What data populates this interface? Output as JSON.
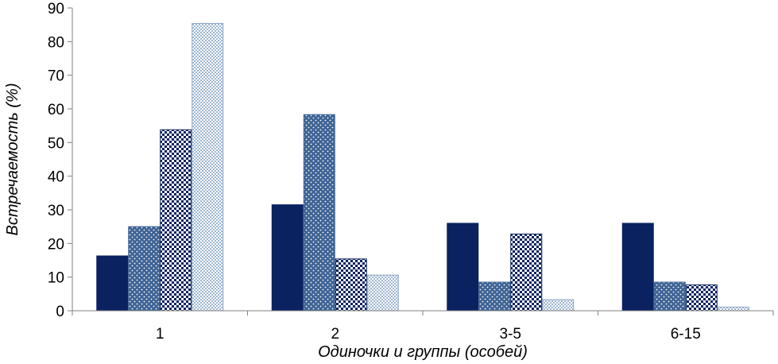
{
  "chart_data": {
    "type": "bar",
    "title": "",
    "xlabel": "Одиночки и группы (особей)",
    "ylabel": "Встречаемость (%)",
    "categories": [
      "1",
      "2",
      "3-5",
      "6-15"
    ],
    "ylim": [
      0,
      90
    ],
    "yticks": [
      0,
      10,
      20,
      30,
      40,
      50,
      60,
      70,
      80,
      90
    ],
    "grid": false,
    "legend": "none",
    "series": [
      {
        "values": [
          16.3,
          31.5,
          26.0,
          26.0
        ],
        "color": "#0a2260",
        "pattern": "solid"
      },
      {
        "values": [
          25.0,
          58.3,
          8.5,
          8.5
        ],
        "color": "#3f6394",
        "pattern": "dots"
      },
      {
        "values": [
          53.8,
          15.4,
          22.8,
          7.7
        ],
        "color": "#0a2260",
        "pattern": "checker"
      },
      {
        "values": [
          85.4,
          10.6,
          3.3,
          1.1
        ],
        "color": "#8ea9c8",
        "pattern": "light-check"
      }
    ]
  }
}
